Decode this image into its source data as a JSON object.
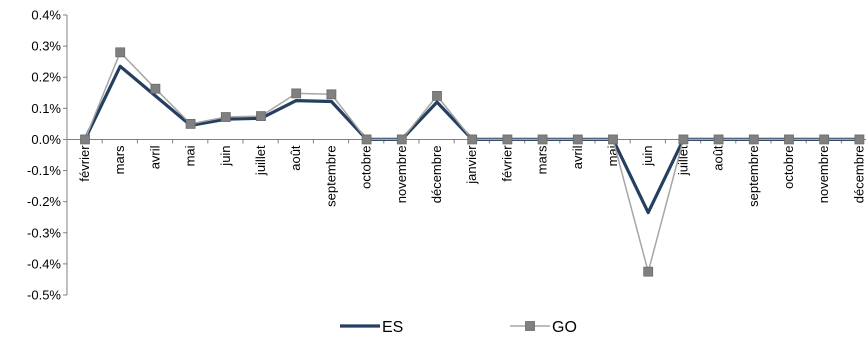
{
  "chart_data": {
    "type": "line",
    "title": "",
    "xlabel": "",
    "ylabel": "",
    "categories": [
      "février",
      "mars",
      "avril",
      "mai",
      "juin",
      "juillet",
      "août",
      "septembre",
      "octobre",
      "novembre",
      "décembre",
      "janvier",
      "février",
      "mars",
      "avril",
      "mai",
      "juin",
      "juillet",
      "août",
      "septembre",
      "octobre",
      "novembre",
      "décembre"
    ],
    "ylim": [
      -0.5,
      0.4
    ],
    "yticks": [
      "0.4%",
      "0.3%",
      "0.2%",
      "0.1%",
      "0.0%",
      "-0.1%",
      "-0.2%",
      "-0.3%",
      "-0.4%",
      "-0.5%"
    ],
    "ytick_values": [
      0.4,
      0.3,
      0.2,
      0.1,
      0.0,
      -0.1,
      -0.2,
      -0.3,
      -0.4,
      -0.5
    ],
    "grid": false,
    "legend_position": "bottom-center",
    "series": [
      {
        "name": "ES",
        "color": "#243f60",
        "marker": "none",
        "values": [
          0.0,
          0.235,
          0.14,
          0.045,
          0.065,
          0.068,
          0.125,
          0.122,
          0.0,
          0.0,
          0.12,
          0.0,
          0.0,
          0.0,
          0.0,
          0.0,
          -0.235,
          0.0,
          0.0,
          0.0,
          0.0,
          0.0,
          0.0
        ]
      },
      {
        "name": "GO",
        "color": "#a6a6a6",
        "marker": "square",
        "marker_color": "#808080",
        "values": [
          0.0,
          0.28,
          0.163,
          0.05,
          0.072,
          0.075,
          0.148,
          0.145,
          0.0,
          0.0,
          0.14,
          0.0,
          0.0,
          0.0,
          0.0,
          0.0,
          -0.425,
          0.0,
          0.0,
          0.0,
          0.0,
          0.0,
          0.0
        ]
      }
    ]
  }
}
